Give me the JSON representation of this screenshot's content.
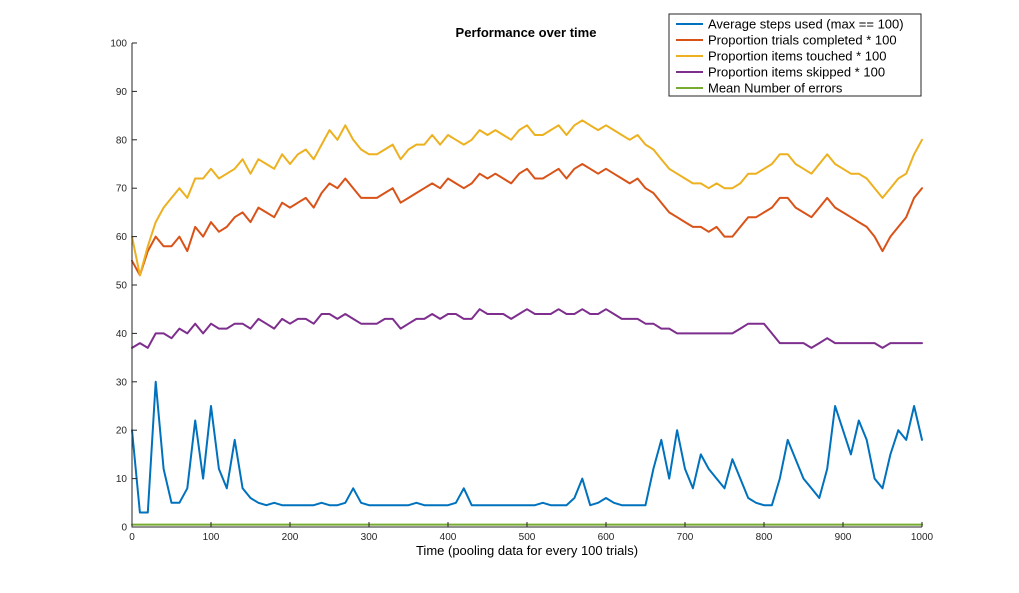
{
  "chart_data": {
    "type": "line",
    "title": "Performance over time",
    "xlabel": "Time (pooling data for every 100 trials)",
    "ylabel": "",
    "xlim": [
      0,
      1000
    ],
    "ylim": [
      0,
      100
    ],
    "xticks": [
      "0",
      "100",
      "200",
      "300",
      "400",
      "500",
      "600",
      "700",
      "800",
      "900",
      "1000"
    ],
    "yticks": [
      "0",
      "10",
      "20",
      "30",
      "40",
      "50",
      "60",
      "70",
      "80",
      "90",
      "100"
    ],
    "grid": false,
    "legend_position": "top-right",
    "x": [
      0,
      10,
      20,
      30,
      40,
      50,
      60,
      70,
      80,
      90,
      100,
      110,
      120,
      130,
      140,
      150,
      160,
      170,
      180,
      190,
      200,
      210,
      220,
      230,
      240,
      250,
      260,
      270,
      280,
      290,
      300,
      310,
      320,
      330,
      340,
      350,
      360,
      370,
      380,
      390,
      400,
      410,
      420,
      430,
      440,
      450,
      460,
      470,
      480,
      490,
      500,
      510,
      520,
      530,
      540,
      550,
      560,
      570,
      580,
      590,
      600,
      610,
      620,
      630,
      640,
      650,
      660,
      670,
      680,
      690,
      700,
      710,
      720,
      730,
      740,
      750,
      760,
      770,
      780,
      790,
      800,
      810,
      820,
      830,
      840,
      850,
      860,
      870,
      880,
      890,
      900,
      910,
      920,
      930,
      940,
      950,
      960,
      970,
      980,
      990,
      1000
    ],
    "series": [
      {
        "name": "Average steps used (max == 100)",
        "color": "#0072bd",
        "values": [
          20,
          3,
          3,
          30,
          12,
          5,
          5,
          8,
          22,
          10,
          25,
          12,
          8,
          18,
          8,
          6,
          5,
          4.5,
          5,
          4.5,
          4.5,
          4.5,
          4.5,
          4.5,
          5,
          4.5,
          4.5,
          5,
          8,
          5,
          4.5,
          4.5,
          4.5,
          4.5,
          4.5,
          4.5,
          5,
          4.5,
          4.5,
          4.5,
          4.5,
          5,
          8,
          4.5,
          4.5,
          4.5,
          4.5,
          4.5,
          4.5,
          4.5,
          4.5,
          4.5,
          5,
          4.5,
          4.5,
          4.5,
          6,
          10,
          4.5,
          5,
          6,
          5,
          4.5,
          4.5,
          4.5,
          4.5,
          12,
          18,
          10,
          20,
          12,
          8,
          15,
          12,
          10,
          8,
          14,
          10,
          6,
          5,
          4.5,
          4.5,
          10,
          18,
          14,
          10,
          8,
          6,
          12,
          25,
          20,
          15,
          22,
          18,
          10,
          8,
          15,
          20,
          18,
          25,
          18
        ]
      },
      {
        "name": "Proportion trials completed * 100",
        "color": "#d95319",
        "values": [
          55,
          52,
          57,
          60,
          58,
          58,
          60,
          57,
          62,
          60,
          63,
          61,
          62,
          64,
          65,
          63,
          66,
          65,
          64,
          67,
          66,
          67,
          68,
          66,
          69,
          71,
          70,
          72,
          70,
          68,
          68,
          68,
          69,
          70,
          67,
          68,
          69,
          70,
          71,
          70,
          72,
          71,
          70,
          71,
          73,
          72,
          73,
          72,
          71,
          73,
          74,
          72,
          72,
          73,
          74,
          72,
          74,
          75,
          74,
          73,
          74,
          73,
          72,
          71,
          72,
          70,
          69,
          67,
          65,
          64,
          63,
          62,
          62,
          61,
          62,
          60,
          60,
          62,
          64,
          64,
          65,
          66,
          68,
          68,
          66,
          65,
          64,
          66,
          68,
          66,
          65,
          64,
          63,
          62,
          60,
          57,
          60,
          62,
          64,
          68,
          70
        ]
      },
      {
        "name": "Proportion items touched * 100",
        "color": "#edb120",
        "values": [
          60,
          52,
          58,
          63,
          66,
          68,
          70,
          68,
          72,
          72,
          74,
          72,
          73,
          74,
          76,
          73,
          76,
          75,
          74,
          77,
          75,
          77,
          78,
          76,
          79,
          82,
          80,
          83,
          80,
          78,
          77,
          77,
          78,
          79,
          76,
          78,
          79,
          79,
          81,
          79,
          81,
          80,
          79,
          80,
          82,
          81,
          82,
          81,
          80,
          82,
          83,
          81,
          81,
          82,
          83,
          81,
          83,
          84,
          83,
          82,
          83,
          82,
          81,
          80,
          81,
          79,
          78,
          76,
          74,
          73,
          72,
          71,
          71,
          70,
          71,
          70,
          70,
          71,
          73,
          73,
          74,
          75,
          77,
          77,
          75,
          74,
          73,
          75,
          77,
          75,
          74,
          73,
          73,
          72,
          70,
          68,
          70,
          72,
          73,
          77,
          80
        ]
      },
      {
        "name": "Proportion items skipped * 100",
        "color": "#7e2f8e",
        "values": [
          37,
          38,
          37,
          40,
          40,
          39,
          41,
          40,
          42,
          40,
          42,
          41,
          41,
          42,
          42,
          41,
          43,
          42,
          41,
          43,
          42,
          43,
          43,
          42,
          44,
          44,
          43,
          44,
          43,
          42,
          42,
          42,
          43,
          43,
          41,
          42,
          43,
          43,
          44,
          43,
          44,
          44,
          43,
          43,
          45,
          44,
          44,
          44,
          43,
          44,
          45,
          44,
          44,
          44,
          45,
          44,
          44,
          45,
          44,
          44,
          45,
          44,
          43,
          43,
          43,
          42,
          42,
          41,
          41,
          40,
          40,
          40,
          40,
          40,
          40,
          40,
          40,
          41,
          42,
          42,
          42,
          40,
          38,
          38,
          38,
          38,
          37,
          38,
          39,
          38,
          38,
          38,
          38,
          38,
          38,
          37,
          38,
          38,
          38,
          38,
          38
        ]
      },
      {
        "name": "Mean Number of errors",
        "color": "#77ac30",
        "values": [
          0.5,
          0.5,
          0.5,
          0.5,
          0.5,
          0.5,
          0.5,
          0.5,
          0.5,
          0.5,
          0.5,
          0.5,
          0.5,
          0.5,
          0.5,
          0.5,
          0.5,
          0.5,
          0.5,
          0.5,
          0.5,
          0.5,
          0.5,
          0.5,
          0.5,
          0.5,
          0.5,
          0.5,
          0.5,
          0.5,
          0.5,
          0.5,
          0.5,
          0.5,
          0.5,
          0.5,
          0.5,
          0.5,
          0.5,
          0.5,
          0.5,
          0.5,
          0.5,
          0.5,
          0.5,
          0.5,
          0.5,
          0.5,
          0.5,
          0.5,
          0.5,
          0.5,
          0.5,
          0.5,
          0.5,
          0.5,
          0.5,
          0.5,
          0.5,
          0.5,
          0.5,
          0.5,
          0.5,
          0.5,
          0.5,
          0.5,
          0.5,
          0.5,
          0.5,
          0.5,
          0.5,
          0.5,
          0.5,
          0.5,
          0.5,
          0.5,
          0.5,
          0.5,
          0.5,
          0.5,
          0.5,
          0.5,
          0.5,
          0.5,
          0.5,
          0.5,
          0.5,
          0.5,
          0.5,
          0.5,
          0.5,
          0.5,
          0.5,
          0.5,
          0.5,
          0.5,
          0.5,
          0.5,
          0.5,
          0.5,
          0.5
        ]
      }
    ]
  }
}
